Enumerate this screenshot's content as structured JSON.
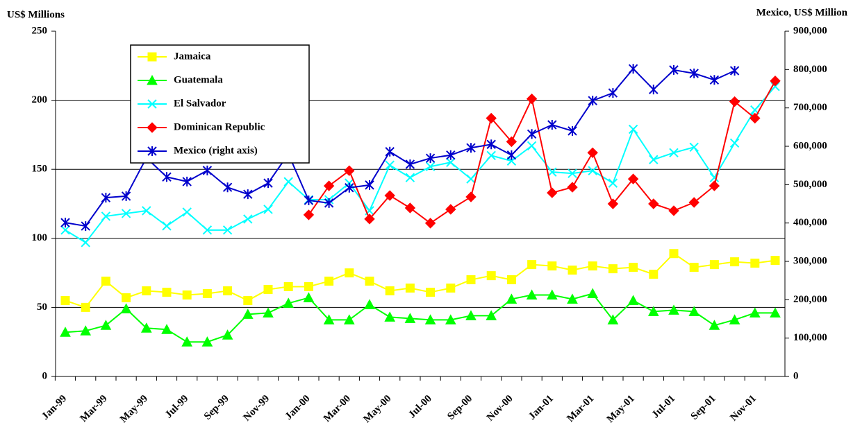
{
  "chart_data": {
    "type": "line",
    "y_label": "US$ Millions",
    "y2_label": "Mexico, US$ Million",
    "categories": [
      "Jan-99",
      null,
      "Mar-99",
      null,
      "May-99",
      null,
      "Jul-99",
      null,
      "Sep-99",
      null,
      "Nov-99",
      null,
      "Jan-00",
      null,
      "Mar-00",
      null,
      "May-00",
      null,
      "Jul-00",
      null,
      "Sep-00",
      null,
      "Nov-00",
      null,
      "Jan-01",
      null,
      "Mar-01",
      null,
      "May-01",
      null,
      "Jul-01",
      null,
      "Sep-01",
      null,
      "Nov-01",
      null
    ],
    "ylim": [
      0,
      250
    ],
    "yticks": [
      0,
      50,
      100,
      150,
      200,
      250
    ],
    "y2lim": [
      0,
      900000
    ],
    "y2ticks": [
      {
        "value": 0,
        "label": "0"
      },
      {
        "value": 100000,
        "label": "100,000"
      },
      {
        "value": 200000,
        "label": "200,000"
      },
      {
        "value": 300000,
        "label": "300,000"
      },
      {
        "value": 400000,
        "label": "400,000"
      },
      {
        "value": 500000,
        "label": "500,000"
      },
      {
        "value": 600000,
        "label": "600,000"
      },
      {
        "value": 700000,
        "label": "700,000"
      },
      {
        "value": 800000,
        "label": "800,000"
      },
      {
        "value": 900000,
        "label": "900,000"
      }
    ],
    "grid": true,
    "legend": "upper left",
    "series": [
      {
        "name": "Jamaica",
        "color": "#ffff00",
        "marker": "square",
        "values": [
          55,
          50,
          69,
          57,
          62,
          61,
          59,
          60,
          62,
          55,
          63,
          65,
          65,
          69,
          75,
          69,
          62,
          64,
          61,
          64,
          70,
          73,
          70,
          81,
          80,
          77,
          80,
          78,
          79,
          74,
          89,
          79,
          81,
          83,
          82,
          84
        ]
      },
      {
        "name": "Guatemala",
        "color": "#00ff00",
        "marker": "triangle",
        "values": [
          32,
          33,
          37,
          49,
          35,
          34,
          25,
          25,
          30,
          45,
          46,
          53,
          57,
          41,
          41,
          52,
          43,
          42,
          41,
          41,
          44,
          44,
          56,
          59,
          59,
          56,
          60,
          41,
          55,
          47,
          48,
          47,
          37,
          41,
          46,
          46
        ]
      },
      {
        "name": "El Salvador",
        "color": "#00ffff",
        "marker": "x",
        "values": [
          106,
          97,
          116,
          118,
          120,
          109,
          119,
          106,
          106,
          114,
          121,
          141,
          128,
          128,
          140,
          120,
          153,
          144,
          152,
          155,
          143,
          160,
          156,
          167,
          148,
          147,
          149,
          140,
          179,
          157,
          162,
          166,
          144,
          169,
          193,
          210
        ]
      },
      {
        "name": "Dominican Republic",
        "color": "#ff0000",
        "marker": "diamond",
        "values": [
          null,
          null,
          null,
          null,
          null,
          null,
          null,
          null,
          null,
          null,
          null,
          null,
          117,
          138,
          149,
          114,
          131,
          122,
          111,
          121,
          130,
          187,
          170,
          201,
          133,
          137,
          162,
          125,
          143,
          125,
          120,
          126,
          138,
          199,
          187,
          214
        ]
      },
      {
        "name": "Mexico (right axis)",
        "color": "#0000cc",
        "marker": "star",
        "axis": "y2",
        "values": [
          401000,
          392000,
          466000,
          470000,
          570000,
          520000,
          508000,
          537000,
          493000,
          475000,
          504000,
          580000,
          459000,
          452000,
          492000,
          499000,
          586000,
          553000,
          569000,
          577000,
          596000,
          605000,
          577000,
          632000,
          656000,
          640000,
          719000,
          739000,
          802000,
          748000,
          799000,
          790000,
          773000,
          797000,
          null,
          null
        ]
      }
    ]
  }
}
